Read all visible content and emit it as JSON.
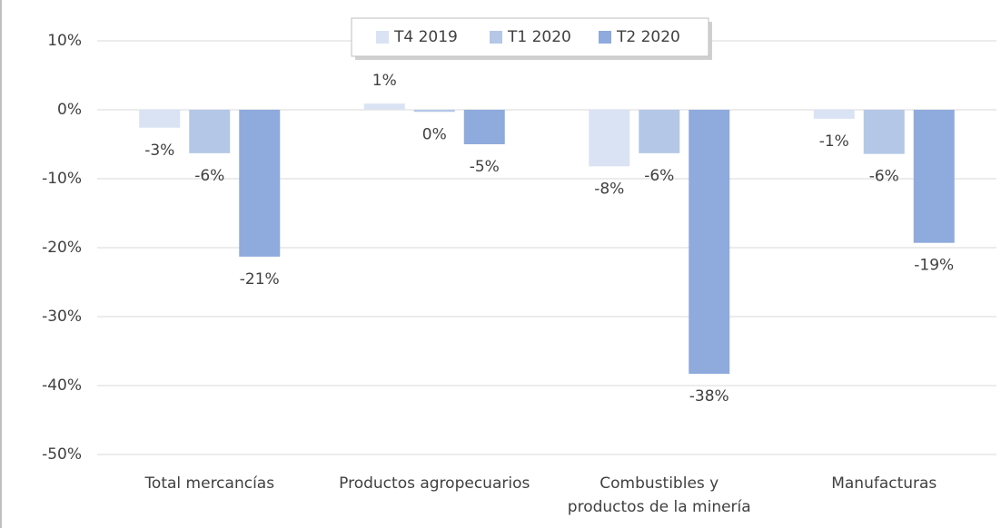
{
  "chart_data": {
    "type": "bar",
    "categories": [
      "Total mercancías",
      "Productos agropecuarios",
      "Combustibles y\nproductos de la minería",
      "Manufacturas"
    ],
    "series": [
      {
        "name": "T4 2019",
        "color": "#dae3f3",
        "values": [
          -2.6,
          0.9,
          -8.2,
          -1.3
        ],
        "value_labels": [
          "-3%",
          "1%",
          "-8%",
          "-1%"
        ]
      },
      {
        "name": "T1 2020",
        "color": "#b4c7e7",
        "values": [
          -6.3,
          -0.3,
          -6.3,
          -6.4
        ],
        "value_labels": [
          "-6%",
          "0%",
          "-6%",
          "-6%"
        ]
      },
      {
        "name": "T2 2020",
        "color": "#8faadc",
        "values": [
          -21.3,
          -5.0,
          -38.3,
          -19.3
        ],
        "value_labels": [
          "-21%",
          "-5%",
          "-38%",
          "-19%"
        ]
      }
    ],
    "ylim": [
      -50,
      10
    ],
    "yticks": [
      {
        "value": -50,
        "label": "-50%"
      },
      {
        "value": -40,
        "label": "-40%"
      },
      {
        "value": -30,
        "label": "-30%"
      },
      {
        "value": -20,
        "label": "-20%"
      },
      {
        "value": -10,
        "label": "-10%"
      },
      {
        "value": 0,
        "label": "0%"
      },
      {
        "value": 10,
        "label": "10%"
      }
    ],
    "grid": true,
    "legend": "top"
  }
}
